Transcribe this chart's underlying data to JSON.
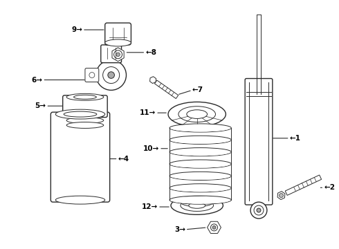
{
  "bg_color": "#ffffff",
  "line_color": "#2a2a2a",
  "label_color": "#000000",
  "lw_thin": 0.7,
  "lw_med": 1.0,
  "lw_thick": 1.3,
  "label_fs": 7.5
}
